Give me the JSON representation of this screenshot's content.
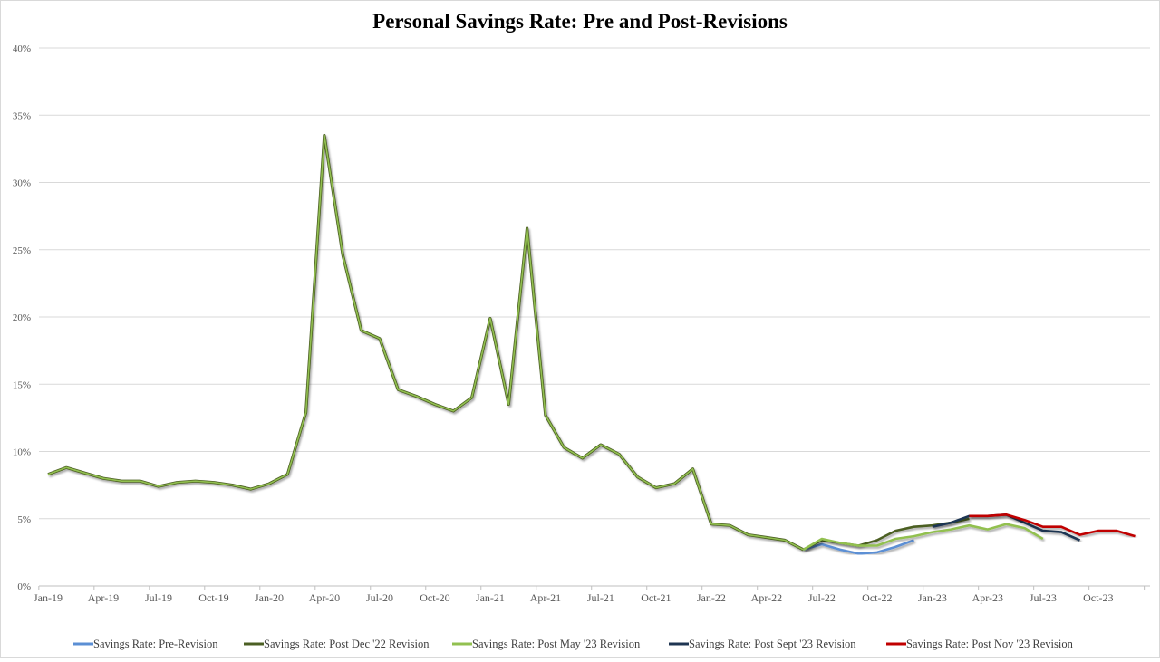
{
  "chart_data": {
    "type": "line",
    "title": "Personal Savings Rate: Pre and Post-Revisions",
    "xlabel": "",
    "ylabel": "",
    "ylim": [
      0,
      40
    ],
    "yticks": [
      "0%",
      "5%",
      "10%",
      "15%",
      "20%",
      "25%",
      "30%",
      "35%",
      "40%"
    ],
    "xtick_labels": [
      "Jan-19",
      "Apr-19",
      "Jul-19",
      "Oct-19",
      "Jan-20",
      "Apr-20",
      "Jul-20",
      "Oct-20",
      "Jan-21",
      "Apr-21",
      "Jul-21",
      "Oct-21",
      "Jan-22",
      "Apr-22",
      "Jul-22",
      "Oct-22",
      "Jan-23",
      "Apr-23",
      "Jul-23",
      "Oct-23"
    ],
    "x_start": "Jan-19",
    "x_end": "Dec-23",
    "grid": "horizontal",
    "legend_placement": "bottom",
    "common_history": {
      "start": "Jan-19",
      "values": [
        8.3,
        8.8,
        8.4,
        8.0,
        7.8,
        7.8,
        7.4,
        7.7,
        7.8,
        7.7,
        7.5,
        7.2,
        7.6,
        8.3,
        12.9,
        33.5,
        24.6,
        19.0,
        18.4,
        14.6,
        14.1,
        13.5,
        13.0,
        14.0,
        19.9,
        13.5,
        26.6,
        12.7,
        10.3,
        9.5,
        10.5,
        9.8,
        8.1,
        7.3,
        7.6,
        8.7,
        4.6,
        4.5,
        3.8,
        3.6,
        3.4,
        2.7
      ]
    },
    "series": [
      {
        "name": "Savings Rate: Pre-Revision",
        "color": "#5b8fd4",
        "start": "Jun-22",
        "values": [
          2.7,
          3.1,
          2.7,
          2.4,
          2.5,
          2.9,
          3.4
        ]
      },
      {
        "name": "Savings Rate: Post Dec '22 Revision",
        "color": "#4b5f23",
        "start": "Jun-22",
        "values": [
          2.7,
          3.4,
          3.2,
          3.0,
          3.4,
          4.1,
          4.4,
          4.5,
          4.7,
          5.0
        ]
      },
      {
        "name": "Savings Rate: Post May '23 Revision",
        "color": "#92c050",
        "start": "Jun-22",
        "values": [
          2.7,
          3.5,
          3.2,
          3.0,
          3.0,
          3.5,
          3.7,
          4.0,
          4.2,
          4.5,
          4.2,
          4.6,
          4.3,
          3.5
        ]
      },
      {
        "name": "Savings Rate: Post Sept '23 Revision",
        "color": "#1f3552",
        "start": "Jan-23",
        "values": [
          4.4,
          4.7,
          5.2,
          5.2,
          5.3,
          4.7,
          4.1,
          4.0,
          3.4
        ]
      },
      {
        "name": "Savings Rate: Post Nov '23 Revision",
        "color": "#c00000",
        "start": "Mar-23",
        "values": [
          5.2,
          5.2,
          5.3,
          4.9,
          4.4,
          4.4,
          3.8,
          4.1,
          4.1,
          3.7
        ]
      }
    ]
  }
}
